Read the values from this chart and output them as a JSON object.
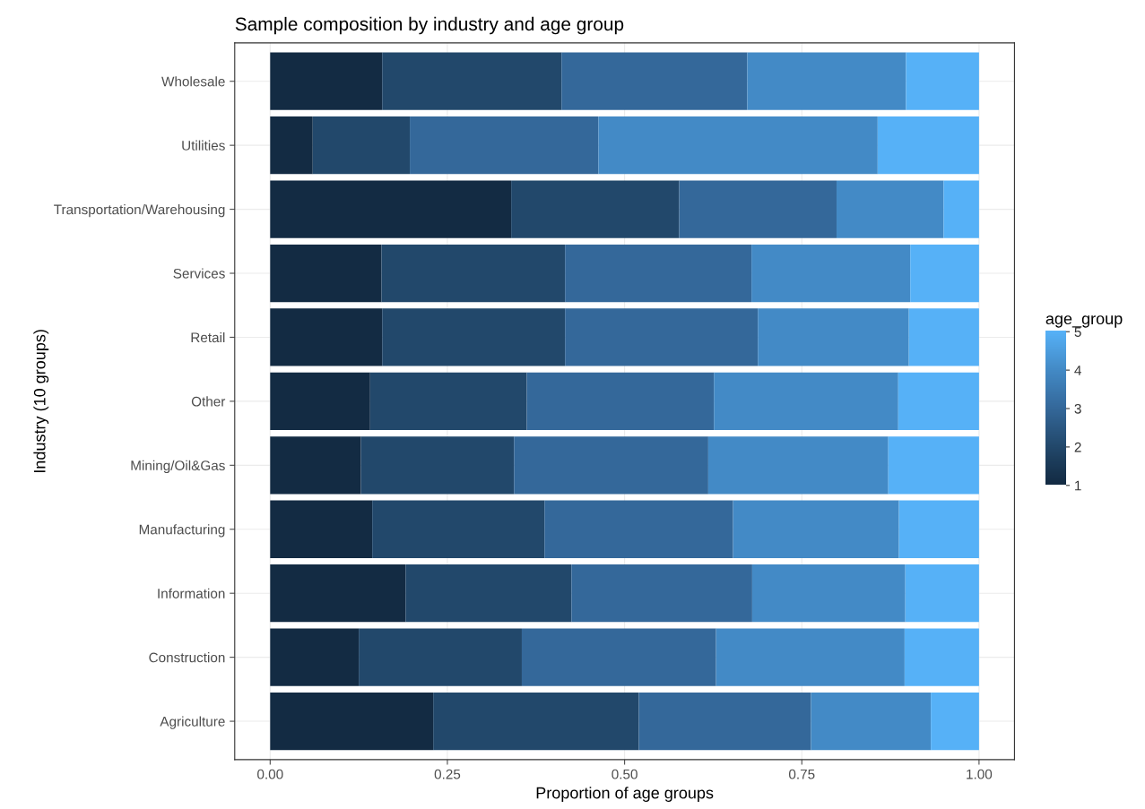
{
  "chart_data": {
    "type": "bar",
    "orientation": "horizontal",
    "stacked": true,
    "title": "Sample composition by industry and age group",
    "xlabel": "Proportion of age groups",
    "ylabel": "Industry (10 groups)",
    "categories": [
      "Wholesale",
      "Utilities",
      "Transportation/Warehousing",
      "Services",
      "Retail",
      "Other",
      "Mining/Oil&Gas",
      "Manufacturing",
      "Information",
      "Construction",
      "Agriculture"
    ],
    "series": [
      {
        "color": "#132b43",
        "values": [
          0.158,
          0.06,
          0.34,
          0.157,
          0.158,
          0.141,
          0.128,
          0.144,
          0.191,
          0.125,
          0.23
        ]
      },
      {
        "color": "#22486b",
        "values": [
          0.253,
          0.137,
          0.237,
          0.259,
          0.258,
          0.221,
          0.216,
          0.243,
          0.234,
          0.23,
          0.29
        ]
      },
      {
        "color": "#34689a",
        "values": [
          0.262,
          0.266,
          0.222,
          0.263,
          0.272,
          0.264,
          0.274,
          0.266,
          0.255,
          0.274,
          0.243
        ]
      },
      {
        "color": "#438ac6",
        "values": [
          0.224,
          0.394,
          0.151,
          0.224,
          0.213,
          0.26,
          0.254,
          0.234,
          0.216,
          0.266,
          0.169
        ]
      },
      {
        "color": "#56b1f7",
        "values": [
          0.103,
          0.143,
          0.05,
          0.097,
          0.099,
          0.114,
          0.128,
          0.113,
          0.104,
          0.105,
          0.068
        ]
      }
    ],
    "xlim": [
      -0.05,
      1.05
    ],
    "xticks": [
      {
        "value": 0,
        "label": "0.00"
      },
      {
        "value": 0.25,
        "label": "0.25"
      },
      {
        "value": 0.5,
        "label": "0.50"
      },
      {
        "value": 0.75,
        "label": "0.75"
      },
      {
        "value": 1,
        "label": "1.00"
      }
    ],
    "clabel": "age_group",
    "clim": [
      1,
      5
    ],
    "cticks": [
      1,
      2,
      3,
      4,
      5
    ],
    "grid": true,
    "legend": false
  }
}
